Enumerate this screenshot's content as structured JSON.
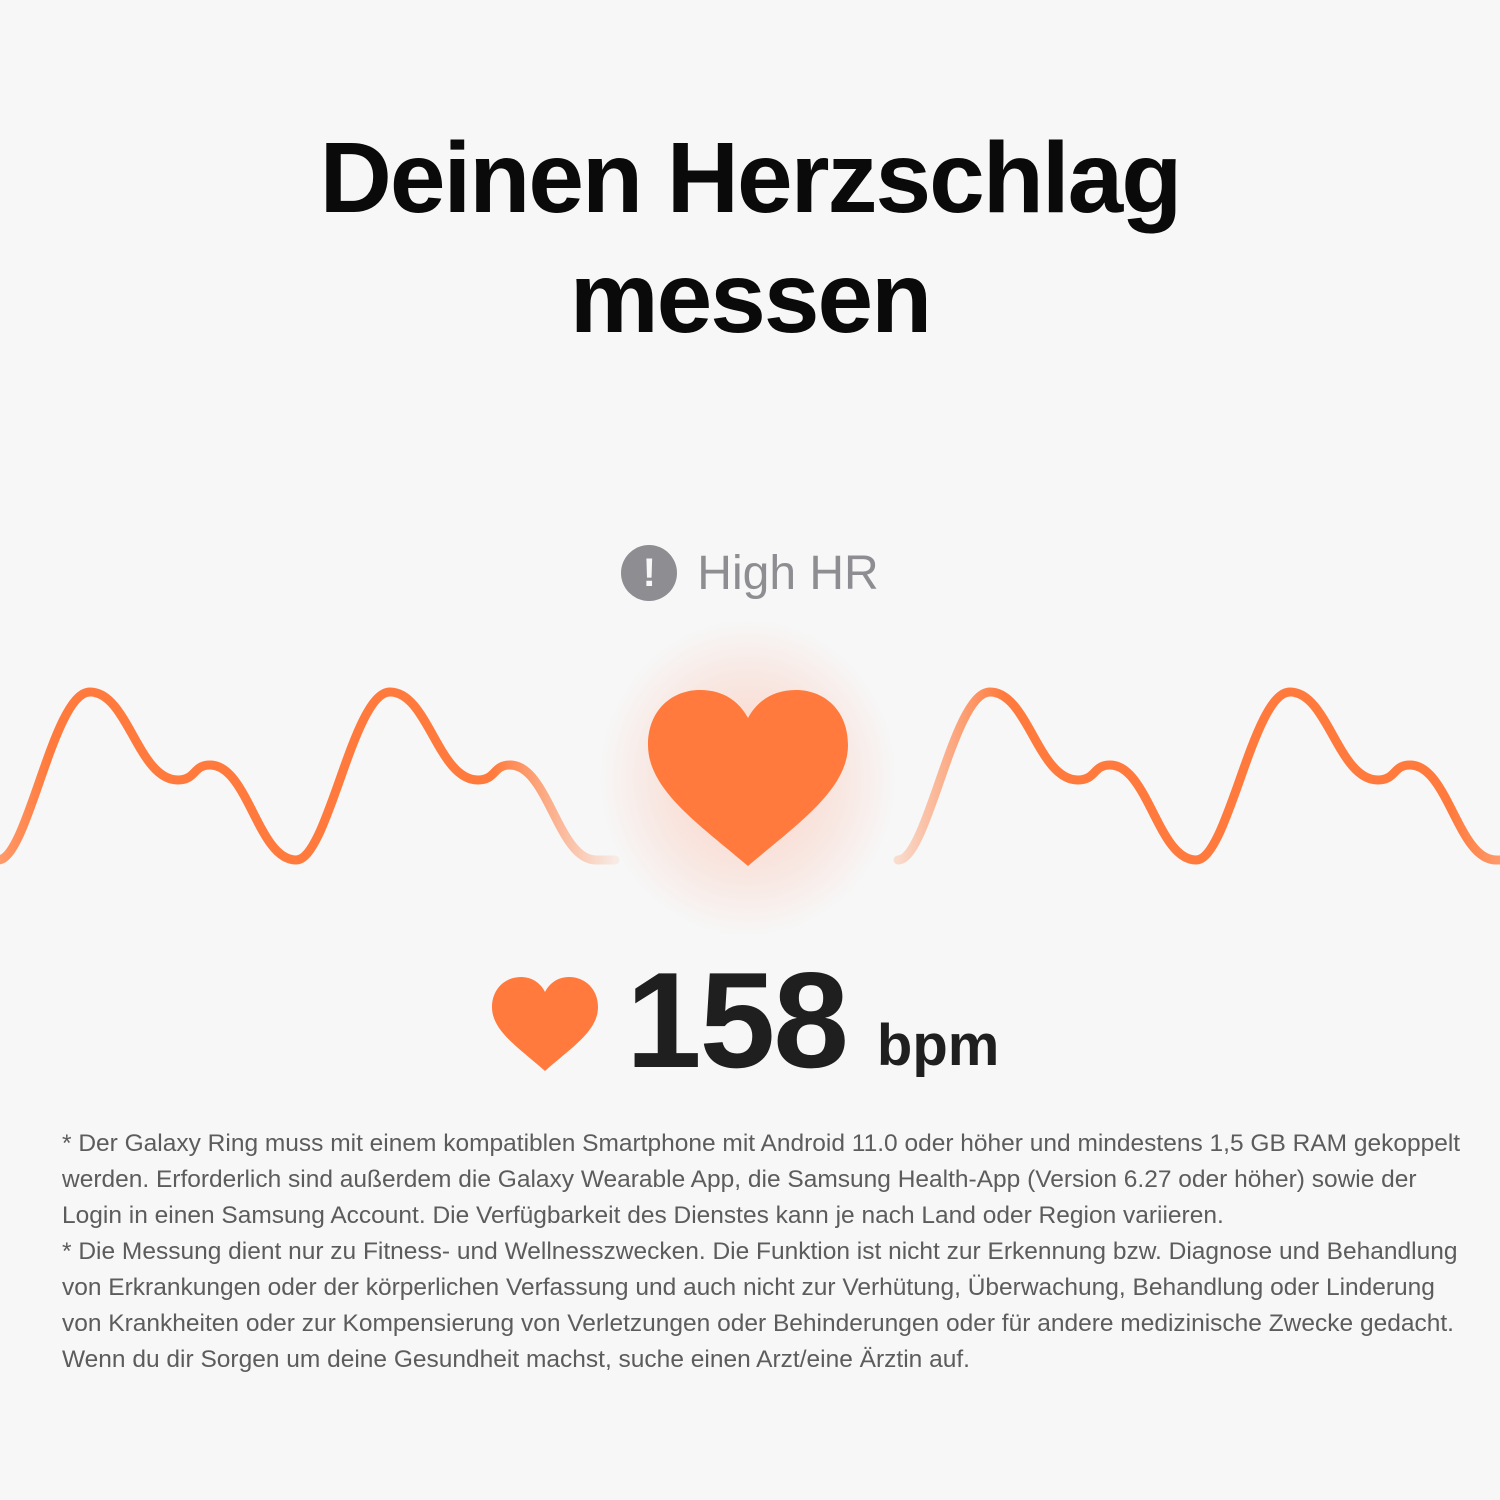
{
  "title": {
    "line1": "Deinen Herzschlag",
    "line2": "messen"
  },
  "status": {
    "icon": "exclamation-circle-icon",
    "icon_glyph": "!",
    "label": "High HR"
  },
  "reading": {
    "icon": "heart-icon",
    "value": "158",
    "unit": "bpm"
  },
  "colors": {
    "accent": "#ff7a3c",
    "status_gray": "#8d8d92",
    "text": "#1f1f1f",
    "background": "#f7f7f7"
  },
  "footnotes": [
    "* Der Galaxy Ring muss mit einem kompatiblen Smartphone mit Android 11.0 oder höher und mindestens 1,5 GB RAM gekoppelt werden. Erforderlich sind außerdem die Galaxy Wearable App, die Samsung Health-App (Version 6.27 oder höher) sowie der Login in einen Samsung Account. Die Verfügbarkeit des Dienstes kann je nach Land oder Region variieren.",
    "* Die Messung dient nur zu Fitness- und Wellnesszwecken. Die Funktion ist nicht zur Erkennung bzw. Diagnose und Behandlung von Erkrankungen oder der körperlichen Verfassung und auch nicht zur Verhütung, Überwachung, Behandlung oder Linderung von Krankheiten oder zur Kompensierung von Verletzungen oder Behinderungen oder für andere medizinische Zwecke gedacht. Wenn du dir Sorgen um deine Gesundheit machst, suche einen Arzt/eine Ärztin auf."
  ]
}
